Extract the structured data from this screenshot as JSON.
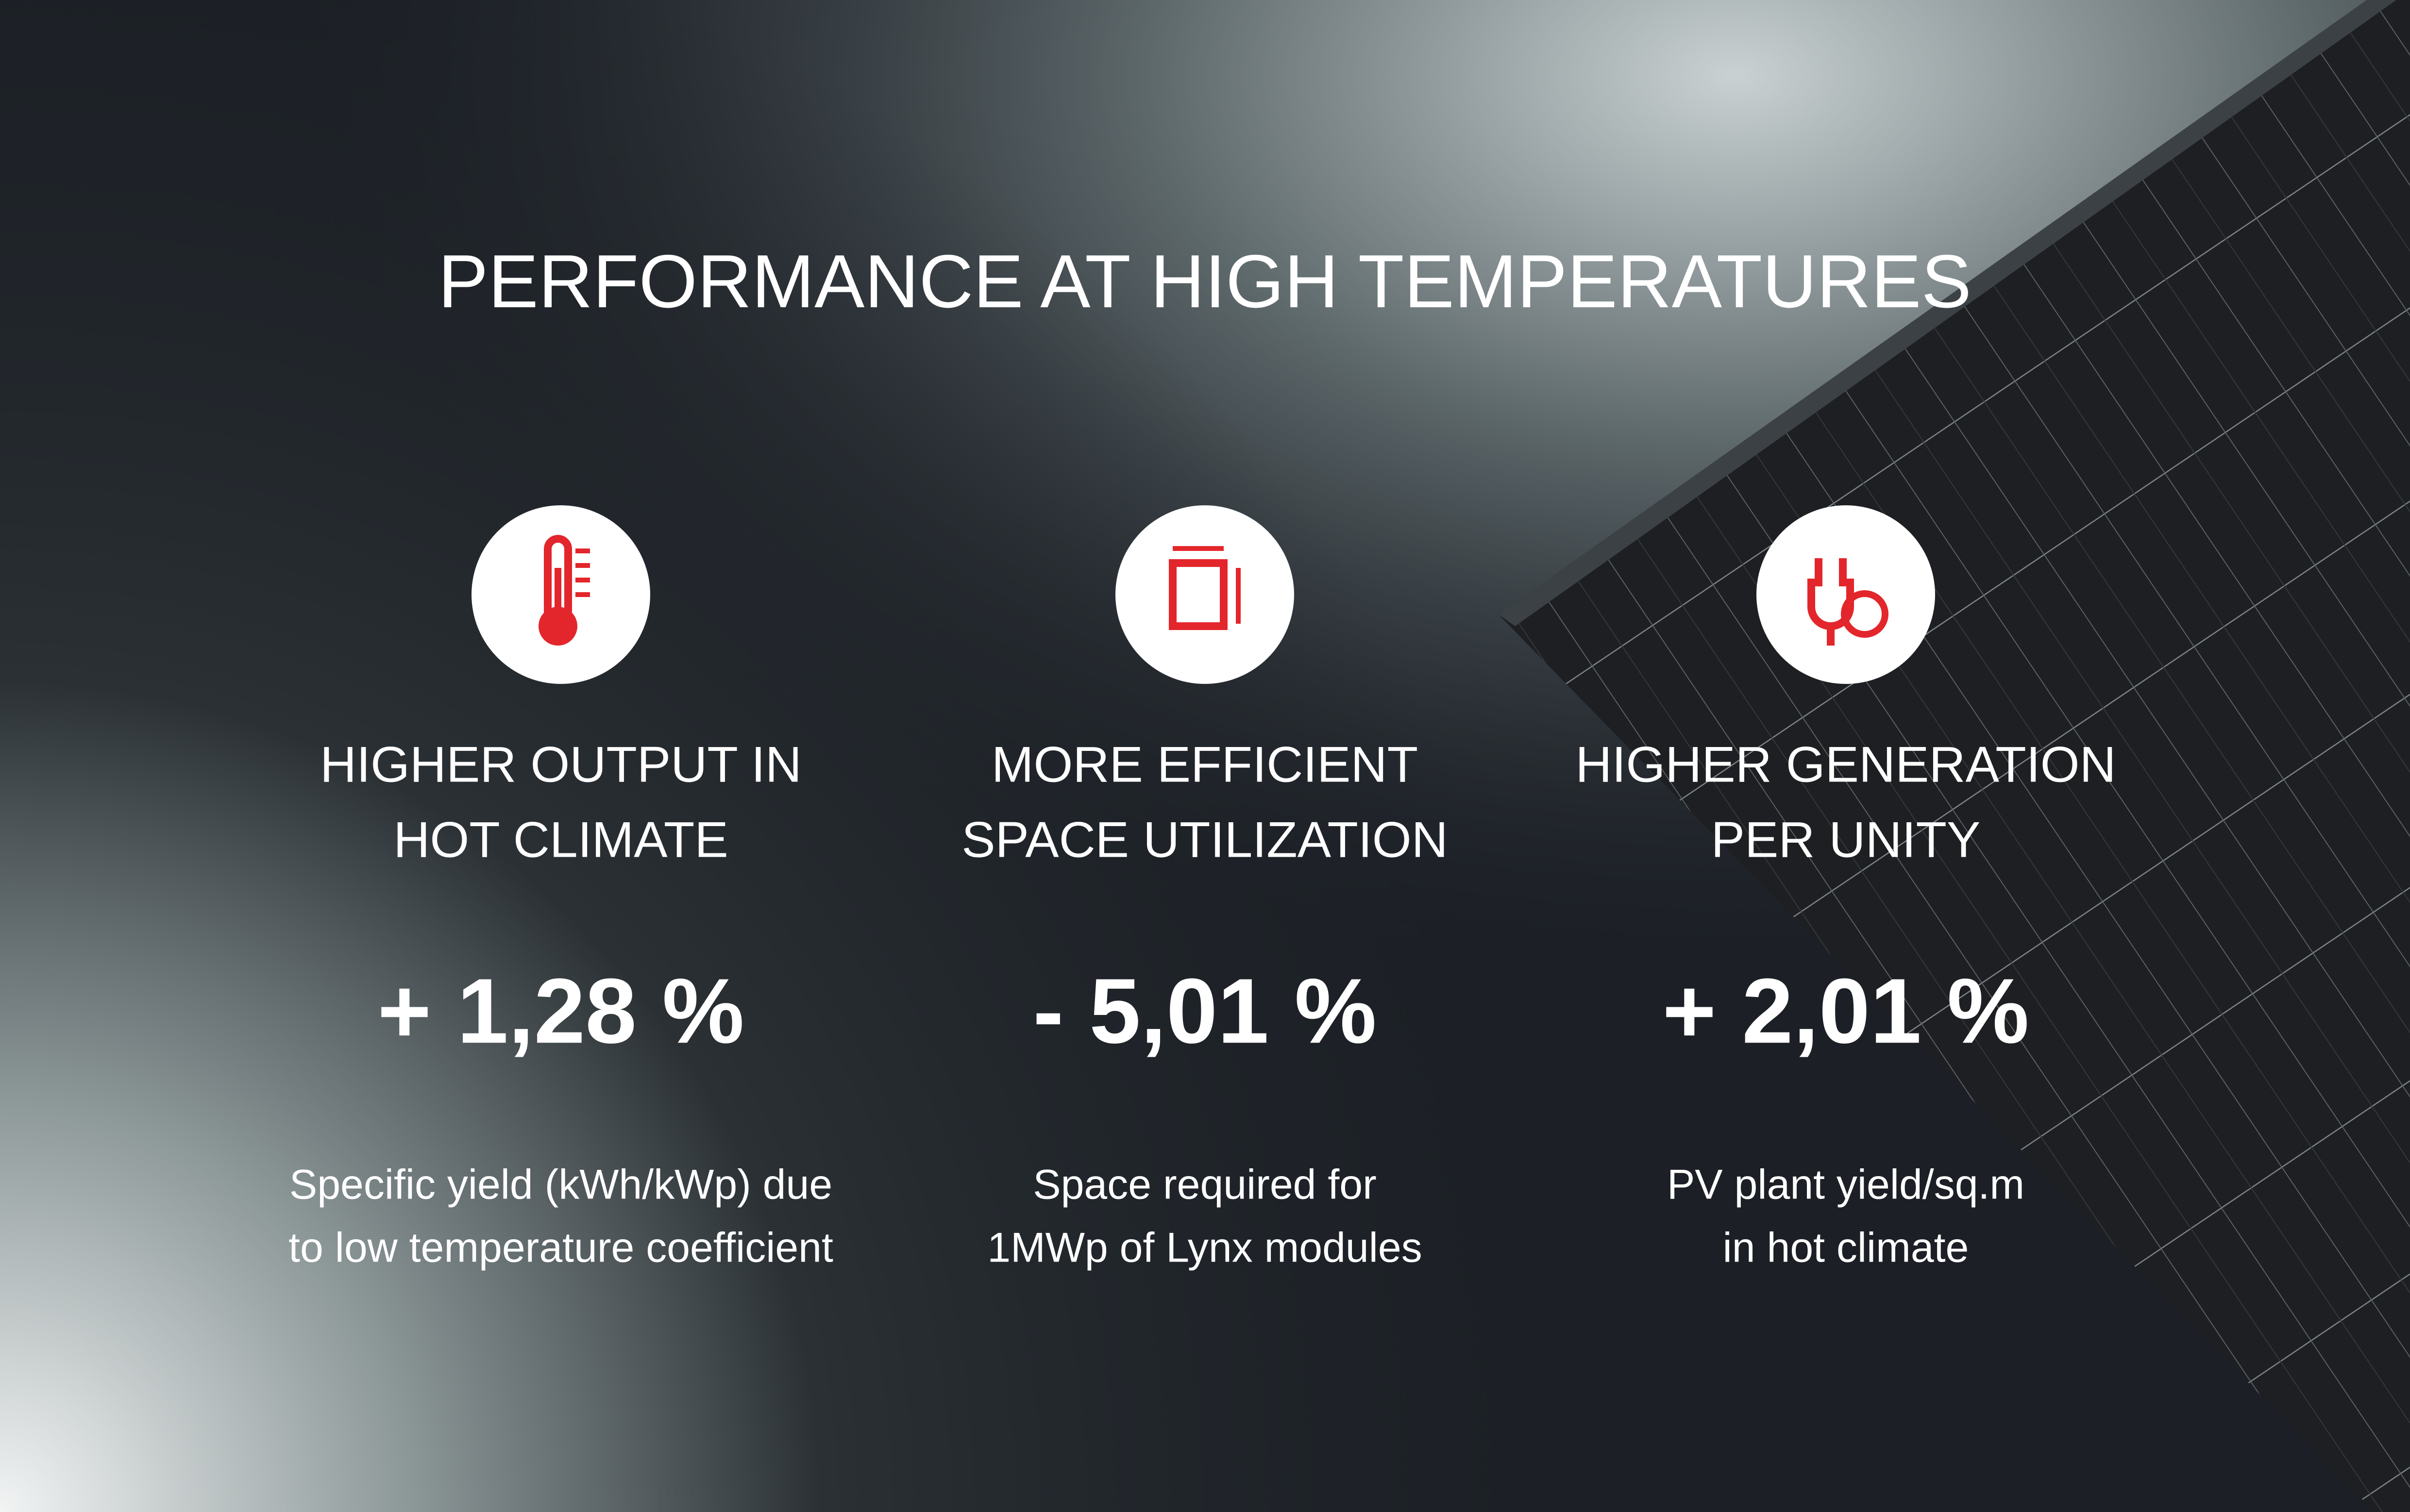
{
  "title": "PERFORMANCE AT HIGH TEMPERATURES",
  "items": [
    {
      "heading": [
        "HIGHER OUTPUT IN",
        "HOT CLIMATE"
      ],
      "value": "+ 1,28 %",
      "description": [
        "Specific yield (kWh/kWp) due",
        "to low temperature coefficient"
      ]
    },
    {
      "heading": [
        "MORE EFFICIENT",
        "SPACE UTILIZATION"
      ],
      "value": "- 5,01 %",
      "description": [
        "Space required for",
        "1MWp of Lynx modules"
      ]
    },
    {
      "heading": [
        "HIGHER GENERATION",
        "PER UNITY"
      ],
      "value": "+ 2,01 %",
      "description": [
        "PV plant yield/sq.m",
        "in hot climate"
      ]
    }
  ]
}
